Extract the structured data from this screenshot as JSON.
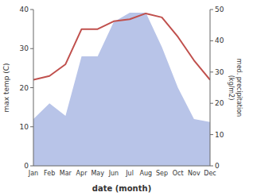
{
  "chart_data": {
    "type": "line",
    "categories": [
      "Jan",
      "Feb",
      "Mar",
      "Apr",
      "May",
      "Jun",
      "Jul",
      "Aug",
      "Sep",
      "Oct",
      "Nov",
      "Dec"
    ],
    "xlabel": "date (month)",
    "ylabel": "max temp (C)",
    "y2label": "med. precipitation\n(kg/m2)",
    "series": [
      {
        "type": "area",
        "axis": "y2",
        "color": "#b8c4e8",
        "values": [
          15,
          20,
          16,
          35,
          35,
          46,
          49,
          49,
          38,
          25,
          15,
          14
        ]
      },
      {
        "type": "line",
        "color": "#c0504d",
        "values": [
          22,
          23,
          26,
          35,
          35,
          37,
          37.5,
          39,
          38,
          33,
          27,
          22
        ]
      }
    ],
    "ylim": [
      0,
      40
    ],
    "yticks": [
      0,
      10,
      20,
      30,
      40
    ],
    "y2lim": [
      0,
      50
    ],
    "y2ticks": [
      0,
      10,
      20,
      30,
      40,
      50
    ]
  }
}
